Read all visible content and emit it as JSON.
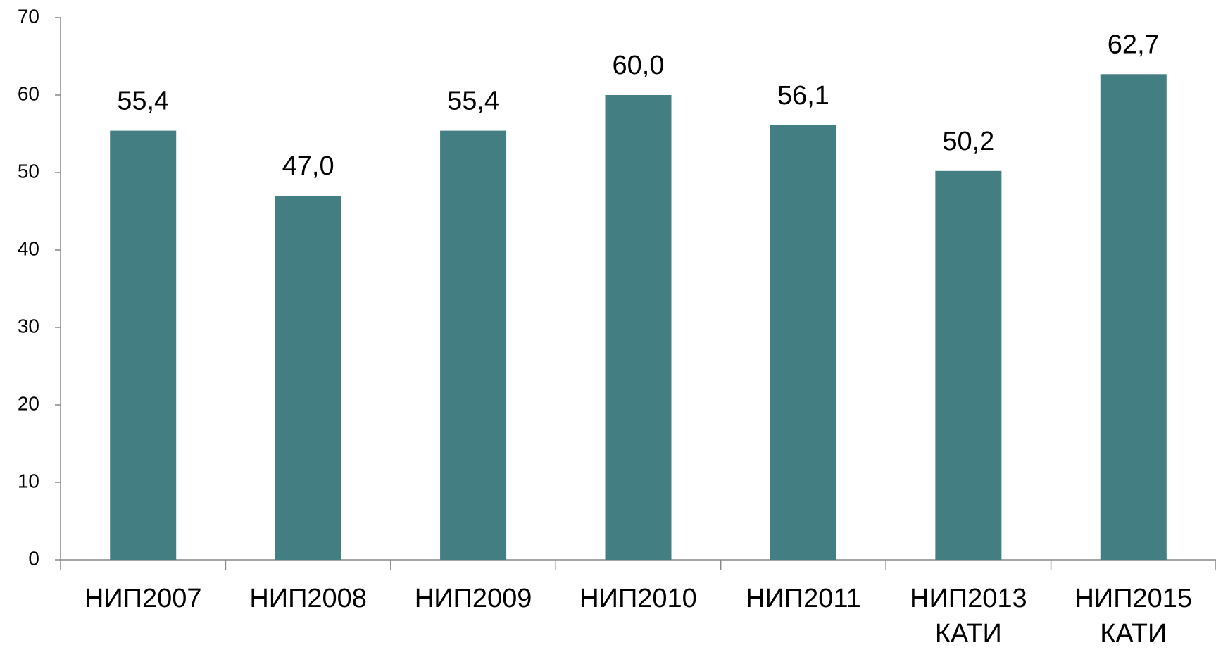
{
  "chart_data": {
    "type": "bar",
    "categories": [
      "НИП2007",
      "НИП2008",
      "НИП2009",
      "НИП2010",
      "НИП2011",
      "НИП2013\nКАТИ",
      "НИП2015\nКАТИ"
    ],
    "values": [
      55.4,
      47.0,
      55.4,
      60.0,
      56.1,
      50.2,
      62.7
    ],
    "value_labels": [
      "55,4",
      "47,0",
      "55,4",
      "60,0",
      "56,1",
      "50,2",
      "62,7"
    ],
    "color": "#427e82",
    "ylim": [
      0,
      70
    ],
    "yticks": [
      0,
      10,
      20,
      30,
      40,
      50,
      60,
      70
    ],
    "grid": false
  }
}
